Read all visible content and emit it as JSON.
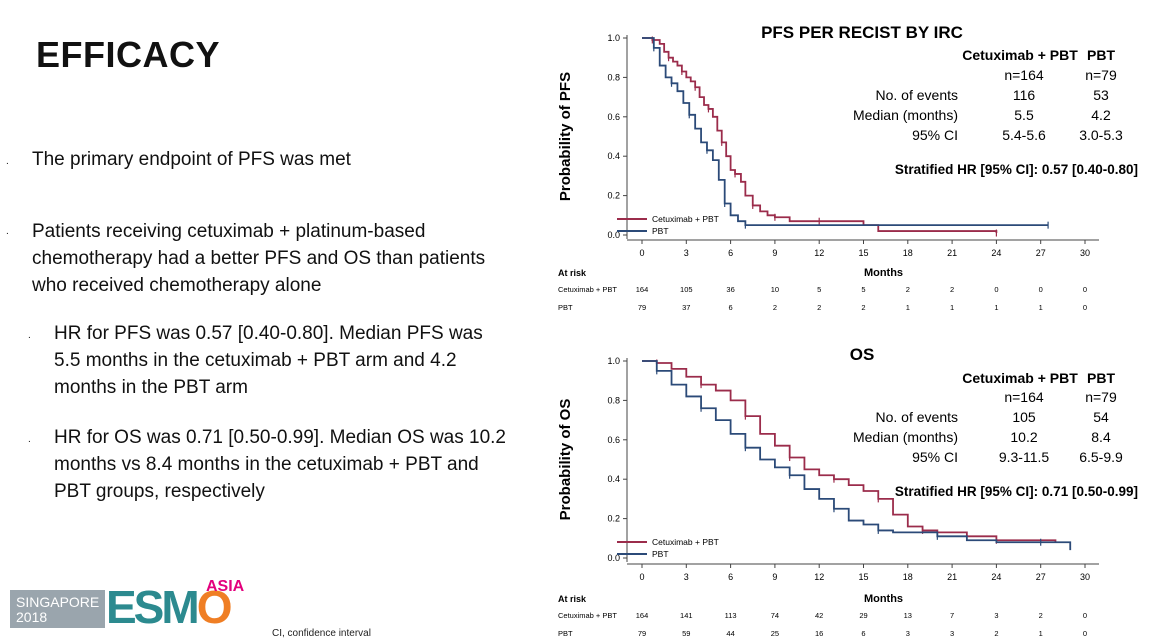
{
  "slide": {
    "title": "EFFICACY",
    "bullets": [
      "The primary endpoint of PFS was met",
      "Patients receiving cetuximab + platinum-based chemotherapy had a better PFS and OS than patients who received chemotherapy alone",
      "HR for PFS was 0.57 [0.40-0.80]. Median PFS was 5.5 months in the cetuximab + PBT arm and 4.2 months in the PBT arm",
      "HR for OS was 0.71 [0.50-0.99]. Median OS was 10.2 months vs 8.4 months in the cetuximab + PBT and PBT groups, respectively"
    ],
    "footnote": "CI, confidence interval",
    "logo": {
      "line1": "SINGAPORE",
      "line2": "2018",
      "mark_a": "ESM",
      "mark_b": "O",
      "suffix": "ASIA"
    }
  },
  "chart_data": [
    {
      "type": "line",
      "title": "PFS PER RECIST BY IRC",
      "ylabel": "Probability of PFS",
      "xlabel": "Months",
      "xlim": [
        0,
        30
      ],
      "ylim": [
        0,
        1
      ],
      "xticks": [
        0,
        3,
        6,
        9,
        12,
        15,
        18,
        21,
        24,
        27,
        30
      ],
      "yticks": [
        0.0,
        0.2,
        0.4,
        0.6,
        0.8,
        1.0
      ],
      "legend": [
        "Cetuximab + PBT",
        "PBT"
      ],
      "series": [
        {
          "name": "Cetuximab + PBT",
          "color": "#9b2c4b",
          "x": [
            0,
            0.7,
            1.2,
            1.5,
            1.8,
            2.1,
            2.4,
            2.7,
            3.0,
            3.3,
            3.6,
            3.9,
            4.2,
            4.5,
            4.8,
            5.1,
            5.4,
            5.7,
            6.0,
            6.3,
            6.7,
            7.0,
            7.5,
            8.0,
            8.5,
            9.0,
            10,
            11,
            12,
            15,
            16,
            24
          ],
          "y": [
            1.0,
            0.99,
            0.97,
            0.93,
            0.9,
            0.88,
            0.86,
            0.83,
            0.8,
            0.78,
            0.75,
            0.7,
            0.66,
            0.64,
            0.6,
            0.53,
            0.47,
            0.4,
            0.33,
            0.31,
            0.27,
            0.2,
            0.15,
            0.12,
            0.1,
            0.09,
            0.07,
            0.07,
            0.07,
            0.05,
            0.02,
            0.01
          ]
        },
        {
          "name": "PBT",
          "color": "#2b4a78",
          "x": [
            0,
            0.8,
            1.2,
            1.6,
            2.0,
            2.4,
            2.8,
            3.2,
            3.6,
            4.0,
            4.4,
            4.8,
            5.2,
            5.6,
            6.0,
            6.5,
            7.0,
            9,
            15,
            27.5
          ],
          "y": [
            1.0,
            0.95,
            0.86,
            0.8,
            0.77,
            0.73,
            0.67,
            0.61,
            0.54,
            0.47,
            0.43,
            0.38,
            0.28,
            0.16,
            0.1,
            0.07,
            0.05,
            0.05,
            0.05,
            0.05
          ]
        }
      ],
      "stats": {
        "headers": [
          "Cetuximab + PBT",
          "PBT"
        ],
        "n": [
          "n=164",
          "n=79"
        ],
        "rows": [
          {
            "label": "No. of events",
            "a": "116",
            "b": "53"
          },
          {
            "label": "Median (months)",
            "a": "5.5",
            "b": "4.2"
          },
          {
            "label": "95% CI",
            "a": "5.4-5.6",
            "b": "3.0-5.3"
          }
        ],
        "hr": "Stratified HR [95% CI]: 0.57 [0.40-0.80]"
      },
      "at_risk": {
        "label": "At risk",
        "rows": [
          {
            "name": "Cetuximab + PBT",
            "values": [
              "164",
              "105",
              "36",
              "10",
              "5",
              "5",
              "2",
              "2",
              "0",
              "0",
              "0"
            ]
          },
          {
            "name": "PBT",
            "values": [
              "79",
              "37",
              "6",
              "2",
              "2",
              "2",
              "1",
              "1",
              "1",
              "1",
              "0"
            ]
          }
        ]
      }
    },
    {
      "type": "line",
      "title": "OS",
      "ylabel": "Probability of OS",
      "xlabel": "Months",
      "xlim": [
        0,
        30
      ],
      "ylim": [
        0,
        1
      ],
      "xticks": [
        0,
        3,
        6,
        9,
        12,
        15,
        18,
        21,
        24,
        27,
        30
      ],
      "yticks": [
        0.0,
        0.2,
        0.4,
        0.6,
        0.8,
        1.0
      ],
      "legend": [
        "Cetuximab + PBT",
        "PBT"
      ],
      "series": [
        {
          "name": "Cetuximab + PBT",
          "color": "#9b2c4b",
          "x": [
            0,
            1,
            2,
            3,
            4,
            5,
            6,
            7,
            8,
            9,
            10,
            11,
            12,
            13,
            14,
            15,
            16,
            17,
            18,
            19,
            20,
            22,
            24,
            26,
            28
          ],
          "y": [
            1.0,
            0.99,
            0.96,
            0.92,
            0.88,
            0.85,
            0.8,
            0.72,
            0.63,
            0.57,
            0.51,
            0.45,
            0.42,
            0.4,
            0.37,
            0.34,
            0.3,
            0.22,
            0.16,
            0.14,
            0.13,
            0.11,
            0.09,
            0.09,
            0.08
          ]
        },
        {
          "name": "PBT",
          "color": "#2b4a78",
          "x": [
            0,
            1,
            2,
            3,
            4,
            5,
            6,
            7,
            8,
            9,
            10,
            11,
            12,
            13,
            14,
            15,
            16,
            17,
            18,
            20,
            22,
            24,
            27,
            29
          ],
          "y": [
            1.0,
            0.95,
            0.88,
            0.82,
            0.76,
            0.7,
            0.63,
            0.56,
            0.5,
            0.46,
            0.42,
            0.35,
            0.3,
            0.25,
            0.19,
            0.17,
            0.14,
            0.13,
            0.13,
            0.11,
            0.09,
            0.08,
            0.08,
            0.04
          ]
        }
      ],
      "stats": {
        "headers": [
          "Cetuximab + PBT",
          "PBT"
        ],
        "n": [
          "n=164",
          "n=79"
        ],
        "rows": [
          {
            "label": "No. of events",
            "a": "105",
            "b": "54"
          },
          {
            "label": "Median (months)",
            "a": "10.2",
            "b": "8.4"
          },
          {
            "label": "95% CI",
            "a": "9.3-11.5",
            "b": "6.5-9.9"
          }
        ],
        "hr": "Stratified HR [95% CI]: 0.71 [0.50-0.99]"
      },
      "at_risk": {
        "label": "At risk",
        "rows": [
          {
            "name": "Cetuximab + PBT",
            "values": [
              "164",
              "141",
              "113",
              "74",
              "42",
              "29",
              "13",
              "7",
              "3",
              "2",
              "0"
            ]
          },
          {
            "name": "PBT",
            "values": [
              "79",
              "59",
              "44",
              "25",
              "16",
              "6",
              "3",
              "3",
              "2",
              "1",
              "0"
            ]
          }
        ]
      }
    }
  ]
}
